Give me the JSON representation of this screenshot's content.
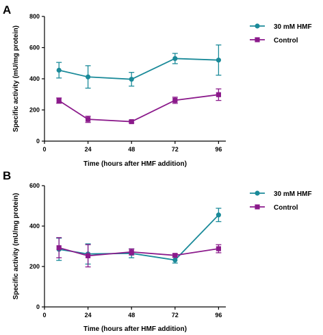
{
  "colors": {
    "hmf": "#1a8a99",
    "control": "#8b1a8b",
    "axis": "#000000"
  },
  "chart_data": [
    {
      "panel": "A",
      "type": "line",
      "xlabel": "Time (hours after HMF addition)",
      "ylabel": "Specific activity (mU/mg protein)",
      "xlim": [
        0,
        100
      ],
      "ylim": [
        0,
        800
      ],
      "xticks": [
        0,
        24,
        48,
        72,
        96
      ],
      "yticks": [
        0,
        200,
        400,
        600,
        800
      ],
      "legend_position": "top-right",
      "series": [
        {
          "name": "30 mM HMF",
          "marker": "circle",
          "x": [
            8,
            24,
            48,
            72,
            96
          ],
          "y": [
            455,
            412,
            397,
            530,
            520
          ],
          "err": [
            50,
            72,
            44,
            33,
            97
          ]
        },
        {
          "name": "Control",
          "marker": "square",
          "x": [
            8,
            24,
            48,
            72,
            96
          ],
          "y": [
            260,
            140,
            125,
            262,
            298
          ],
          "err": [
            17,
            20,
            8,
            20,
            37
          ]
        }
      ]
    },
    {
      "panel": "B",
      "type": "line",
      "xlabel": "Time (hours after HMF addition)",
      "ylabel": "Specific activity (mU/mg protein)",
      "xlim": [
        0,
        100
      ],
      "ylim": [
        0,
        600
      ],
      "xticks": [
        0,
        24,
        48,
        72,
        96
      ],
      "yticks": [
        0,
        200,
        400,
        600
      ],
      "legend_position": "top-right",
      "series": [
        {
          "name": "30 mM HMF",
          "marker": "circle",
          "x": [
            8,
            24,
            48,
            72,
            96
          ],
          "y": [
            285,
            262,
            265,
            232,
            455
          ],
          "err": [
            55,
            50,
            22,
            15,
            33
          ]
        },
        {
          "name": "Control",
          "marker": "square",
          "x": [
            8,
            24,
            48,
            72,
            96
          ],
          "y": [
            293,
            253,
            272,
            255,
            288
          ],
          "err": [
            50,
            55,
            15,
            8,
            20
          ]
        }
      ]
    }
  ]
}
